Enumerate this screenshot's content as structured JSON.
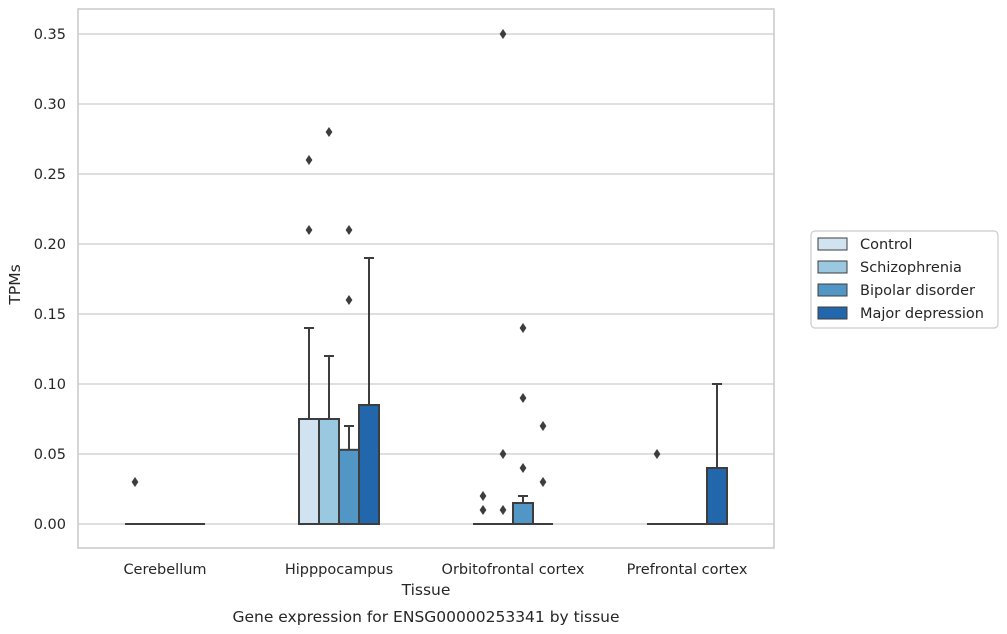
{
  "chart_data": {
    "type": "box",
    "xlabel": "Tissue",
    "ylabel": "TPMs",
    "caption": "Gene expression for ENSG00000253341 by tissue",
    "ylim": [
      -0.017,
      0.368
    ],
    "yticks": [
      "0.00",
      "0.05",
      "0.10",
      "0.15",
      "0.20",
      "0.25",
      "0.30",
      "0.35"
    ],
    "grid": "horizontal",
    "legend_position": "right",
    "categories": [
      "Cerebellum",
      "Hipppocampus",
      "Orbitofrontal cortex",
      "Prefrontal cortex"
    ],
    "series": [
      {
        "name": "Control",
        "color": "#d1e2f1",
        "boxes": [
          {
            "q1": 0,
            "median": 0,
            "q3": 0,
            "whisker_low": 0,
            "whisker_high": 0,
            "outliers": [
              0.03
            ]
          },
          {
            "q1": 0,
            "median": 0,
            "q3": 0.075,
            "whisker_low": 0,
            "whisker_high": 0.14,
            "outliers": [
              0.21,
              0.26
            ]
          },
          {
            "q1": 0,
            "median": 0,
            "q3": 0,
            "whisker_low": 0,
            "whisker_high": 0,
            "outliers": [
              0.01,
              0.02
            ]
          },
          {
            "q1": 0,
            "median": 0,
            "q3": 0,
            "whisker_low": 0,
            "whisker_high": 0,
            "outliers": [
              0.05
            ]
          }
        ]
      },
      {
        "name": "Schizophrenia",
        "color": "#9ac8e0",
        "boxes": [
          {
            "q1": 0,
            "median": 0,
            "q3": 0,
            "whisker_low": 0,
            "whisker_high": 0,
            "outliers": []
          },
          {
            "q1": 0,
            "median": 0,
            "q3": 0.075,
            "whisker_low": 0,
            "whisker_high": 0.12,
            "outliers": [
              0.28
            ]
          },
          {
            "q1": 0,
            "median": 0,
            "q3": 0,
            "whisker_low": 0,
            "whisker_high": 0,
            "outliers": [
              0.01,
              0.05,
              0.35
            ]
          },
          {
            "q1": 0,
            "median": 0,
            "q3": 0,
            "whisker_low": 0,
            "whisker_high": 0,
            "outliers": []
          }
        ]
      },
      {
        "name": "Bipolar disorder",
        "color": "#5296c5",
        "boxes": [
          {
            "q1": 0,
            "median": 0,
            "q3": 0,
            "whisker_low": 0,
            "whisker_high": 0,
            "outliers": []
          },
          {
            "q1": 0,
            "median": 0,
            "q3": 0.053,
            "whisker_low": 0,
            "whisker_high": 0.07,
            "outliers": [
              0.16,
              0.21
            ]
          },
          {
            "q1": 0,
            "median": 0,
            "q3": 0.015,
            "whisker_low": 0,
            "whisker_high": 0.02,
            "outliers": [
              0.04,
              0.09,
              0.14
            ]
          },
          {
            "q1": 0,
            "median": 0,
            "q3": 0,
            "whisker_low": 0,
            "whisker_high": 0,
            "outliers": []
          }
        ]
      },
      {
        "name": "Major depression",
        "color": "#2266ac",
        "boxes": [
          {
            "q1": 0,
            "median": 0,
            "q3": 0,
            "whisker_low": 0,
            "whisker_high": 0,
            "outliers": []
          },
          {
            "q1": 0,
            "median": 0,
            "q3": 0.085,
            "whisker_low": 0,
            "whisker_high": 0.19,
            "outliers": []
          },
          {
            "q1": 0,
            "median": 0,
            "q3": 0,
            "whisker_low": 0,
            "whisker_high": 0,
            "outliers": [
              0.03,
              0.07
            ]
          },
          {
            "q1": 0,
            "median": 0,
            "q3": 0.04,
            "whisker_low": 0,
            "whisker_high": 0.1,
            "outliers": []
          }
        ]
      }
    ]
  }
}
